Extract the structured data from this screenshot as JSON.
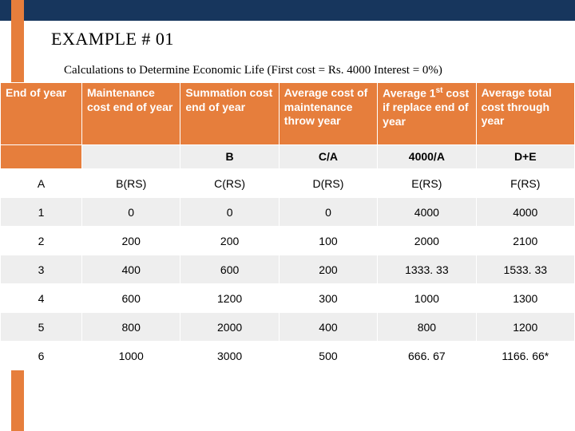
{
  "title": "EXAMPLE # 01",
  "subtitle": "Calculations to Determine Economic Life (First cost = Rs. 4000 Interest = 0%)",
  "headers": [
    "End of  year",
    "Maintenance cost end of year",
    "Summation cost  end of year",
    "Average cost of maintenance throw year",
    "Average 1<sup>st</sup> cost if replace end of year",
    "Average total cost through year"
  ],
  "formula_row": [
    "",
    "",
    "B",
    "C/A",
    "4000/A",
    "D+E"
  ],
  "label_row": [
    "A",
    "B(RS)",
    "C(RS)",
    "D(RS)",
    "E(RS)",
    "F(RS)"
  ],
  "data_rows": [
    [
      "1",
      "0",
      "0",
      "0",
      "4000",
      "4000"
    ],
    [
      "2",
      "200",
      "200",
      "100",
      "2000",
      "2100"
    ],
    [
      "3",
      "400",
      "600",
      "200",
      "1333. 33",
      "1533. 33"
    ],
    [
      "4",
      "600",
      "1200",
      "300",
      "1000",
      "1300"
    ],
    [
      "5",
      "800",
      "2000",
      "400",
      "800",
      "1200"
    ],
    [
      "6",
      "1000",
      "3000",
      "500",
      "666. 67",
      "1166. 66*"
    ]
  ],
  "colors": {
    "top_bar": "#17365d",
    "accent": "#e67e3c",
    "alt_row": "#eee"
  }
}
